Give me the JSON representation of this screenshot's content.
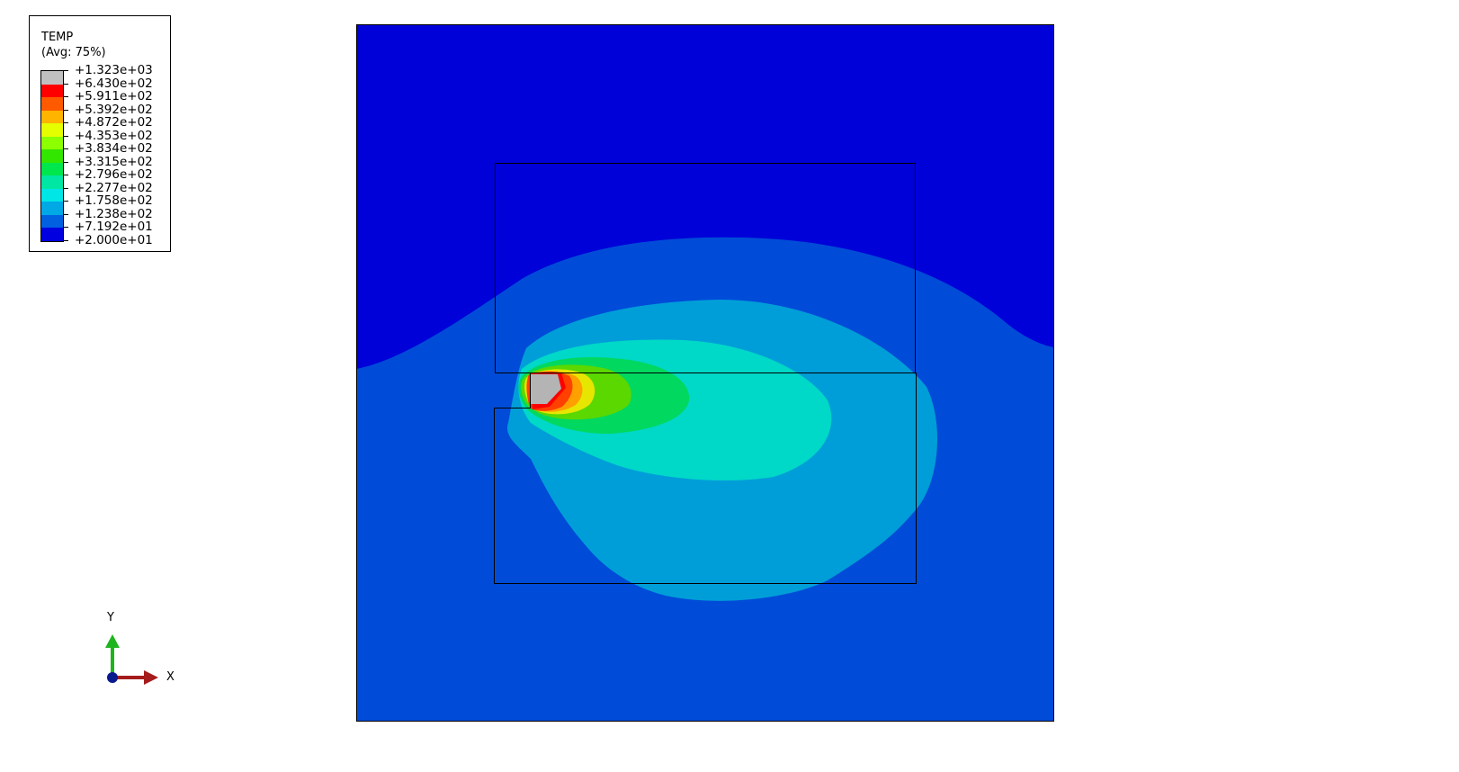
{
  "legend": {
    "title": "TEMP",
    "subtitle": "(Avg: 75%)",
    "levels": [
      {
        "label": "+1.323e+03",
        "color": "#c0c0c0"
      },
      {
        "label": "+6.430e+02",
        "color": "#ff0000"
      },
      {
        "label": "+5.911e+02",
        "color": "#ff5a00"
      },
      {
        "label": "+5.392e+02",
        "color": "#ffb400"
      },
      {
        "label": "+4.872e+02",
        "color": "#e6ff00"
      },
      {
        "label": "+4.353e+02",
        "color": "#8cff00"
      },
      {
        "label": "+3.834e+02",
        "color": "#33e600"
      },
      {
        "label": "+3.315e+02",
        "color": "#00e64d"
      },
      {
        "label": "+2.796e+02",
        "color": "#00e6a3"
      },
      {
        "label": "+2.277e+02",
        "color": "#00e6e6"
      },
      {
        "label": "+1.758e+02",
        "color": "#00a8e6"
      },
      {
        "label": "+1.238e+02",
        "color": "#0060e0"
      },
      {
        "label": "+7.192e+01",
        "color": "#0000e0"
      },
      {
        "label": "+2.000e+01",
        "color": ""
      }
    ]
  },
  "triad": {
    "x_label": "X",
    "y_label": "Y",
    "x_color": "#a51c1c",
    "y_color": "#1eb41e",
    "origin_color": "#0a1a8c"
  },
  "contour_colors": {
    "outer": "#0000d8",
    "band1": "#004cd8",
    "band2": "#009ed8",
    "band3": "#00d8c8",
    "band4": "#00d860",
    "band5": "#5ad800",
    "band6": "#e6e600",
    "band7": "#ffa000",
    "band8": "#ff4000",
    "band9": "#ff0000",
    "hot": "#b4b4b4"
  }
}
